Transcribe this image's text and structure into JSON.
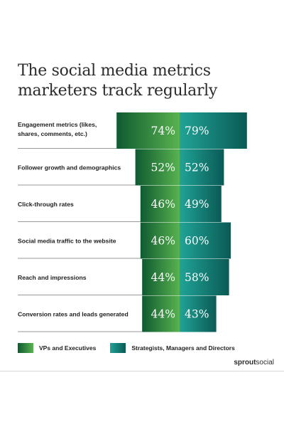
{
  "title_lines": [
    "The social media metrics",
    "marketers track regularly"
  ],
  "colors": {
    "vp_dark": "#0f5a31",
    "vp_light": "#58b34f",
    "strat_dark": "#0a5a55",
    "strat_light": "#21a396",
    "divider": "#9a9a9a"
  },
  "chart_data": {
    "type": "bar",
    "orientation": "horizontal",
    "categories": [
      "Engagement metrics (likes, shares, comments, etc.)",
      "Follower growth and demographics",
      "Click-through rates",
      "Social media traffic to the website",
      "Reach and impressions",
      "Conversion rates and leads generated"
    ],
    "series": [
      {
        "name": "VPs and Executives",
        "values": [
          74,
          52,
          46,
          46,
          44,
          44
        ],
        "labels": [
          "74%",
          "52%",
          "46%",
          "46%",
          "44%",
          "44%"
        ]
      },
      {
        "name": "Strategists, Managers and Directors",
        "values": [
          79,
          52,
          49,
          60,
          58,
          43
        ],
        "labels": [
          "79%",
          "52%",
          "49%",
          "60%",
          "58%",
          "43%"
        ]
      }
    ],
    "legend_position": "bottom-left"
  },
  "brand": {
    "bold": "sprout",
    "regular": "social"
  }
}
